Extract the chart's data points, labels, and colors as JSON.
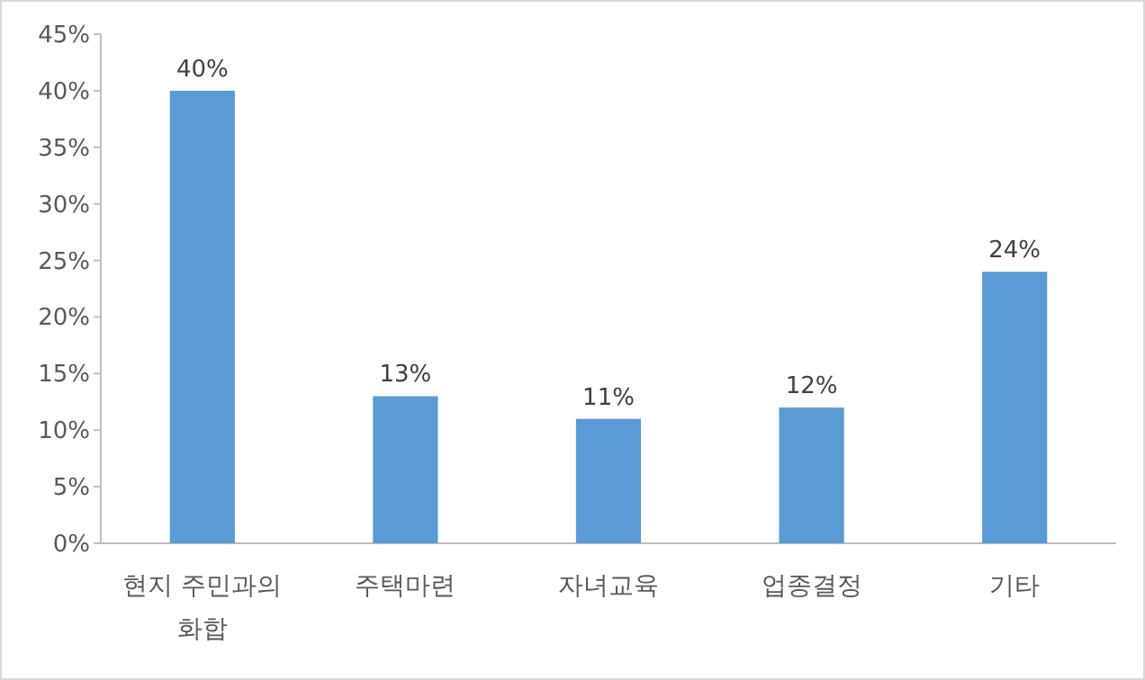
{
  "chart_data": {
    "type": "bar",
    "categories": [
      "현지 주민과의 화합",
      "주택마련",
      "자녀교육",
      "업종결정",
      "기타"
    ],
    "values": [
      40,
      13,
      11,
      12,
      24
    ],
    "color": "#5b9bd5",
    "value_labels": [
      "40%",
      "13%",
      "11%",
      "12%",
      "24%"
    ],
    "ylim": [
      0,
      45
    ],
    "yticks": [
      {
        "value": 0,
        "label": "0%"
      },
      {
        "value": 5,
        "label": "5%"
      },
      {
        "value": 10,
        "label": "10%"
      },
      {
        "value": 15,
        "label": "15%"
      },
      {
        "value": 20,
        "label": "20%"
      },
      {
        "value": 25,
        "label": "25%"
      },
      {
        "value": 30,
        "label": "30%"
      },
      {
        "value": 35,
        "label": "35%"
      },
      {
        "value": 40,
        "label": "40%"
      },
      {
        "value": 45,
        "label": "45%"
      }
    ],
    "grid": false
  }
}
